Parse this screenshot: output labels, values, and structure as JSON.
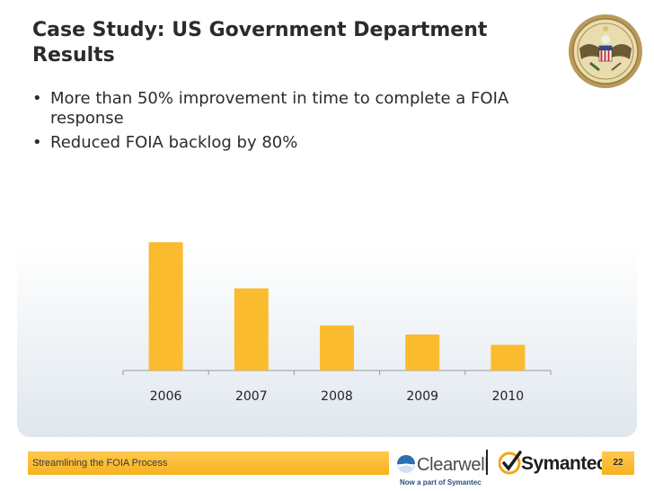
{
  "title_lines": [
    "Case Study: US Government Department",
    "Results"
  ],
  "bullets": [
    "More than 50% improvement in time to complete a FOIA response",
    "Reduced FOIA backlog by 80%"
  ],
  "chart_data": {
    "type": "bar",
    "categories": [
      "2006",
      "2007",
      "2008",
      "2009",
      "2010"
    ],
    "values": [
      100,
      64,
      35,
      28,
      20
    ],
    "title": "",
    "xlabel": "",
    "ylabel": "",
    "ylim": [
      0,
      110
    ],
    "grid": false,
    "bar_color": "#fbbb2e"
  },
  "footer": {
    "text": "Streamlining the FOIA Process",
    "clearwell": "Clearwell",
    "clearwell_sub": "Now a part of Symantec",
    "symantec": "Symantec.",
    "page_number": "22"
  },
  "colors": {
    "accent": "#f9b625",
    "text": "#2b2b2b",
    "logo_blue": "#2a6fb0"
  },
  "icons": {
    "seal": "great-seal-icon",
    "clearwell_mark": "clearwell-logo-icon",
    "symantec_mark": "symantec-check-icon"
  }
}
